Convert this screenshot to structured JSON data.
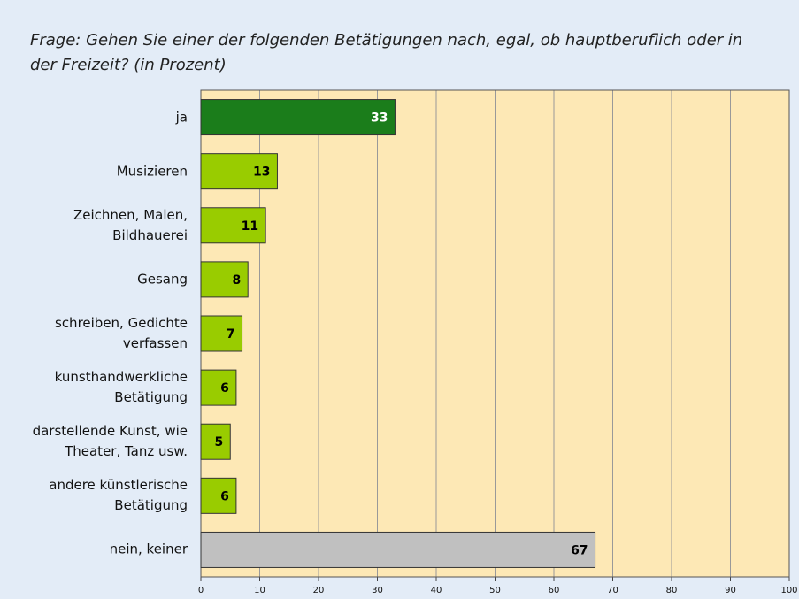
{
  "chart_data": {
    "type": "barh",
    "title": "Frage: Gehen Sie einer der folgenden Betätigungen nach, egal, ob hauptberuflich oder in der Freizeit? (in Prozent)",
    "categories": [
      "ja",
      "Musizieren",
      "Zeichnen, Malen, Bildhauerei",
      "Gesang",
      "schreiben, Gedichte verfassen",
      "kunsthandwerkliche Betätigung",
      "darstellende Kunst, wie Theater, Tanz usw.",
      "andere künstlerische Betätigung",
      "nein, keiner"
    ],
    "values": [
      33,
      13,
      11,
      8,
      7,
      6,
      5,
      6,
      67
    ],
    "colors": [
      "#1b7d1b",
      "#99cc00",
      "#99cc00",
      "#99cc00",
      "#99cc00",
      "#99cc00",
      "#99cc00",
      "#99cc00",
      "#c0c0c0"
    ],
    "value_label_colors": [
      "#ffffff",
      "#000000",
      "#000000",
      "#000000",
      "#000000",
      "#000000",
      "#000000",
      "#000000",
      "#000000"
    ],
    "xlim": [
      0,
      100
    ],
    "xticks": [
      0,
      10,
      20,
      30,
      40,
      50,
      60,
      70,
      80,
      90,
      100
    ],
    "grid": true
  }
}
